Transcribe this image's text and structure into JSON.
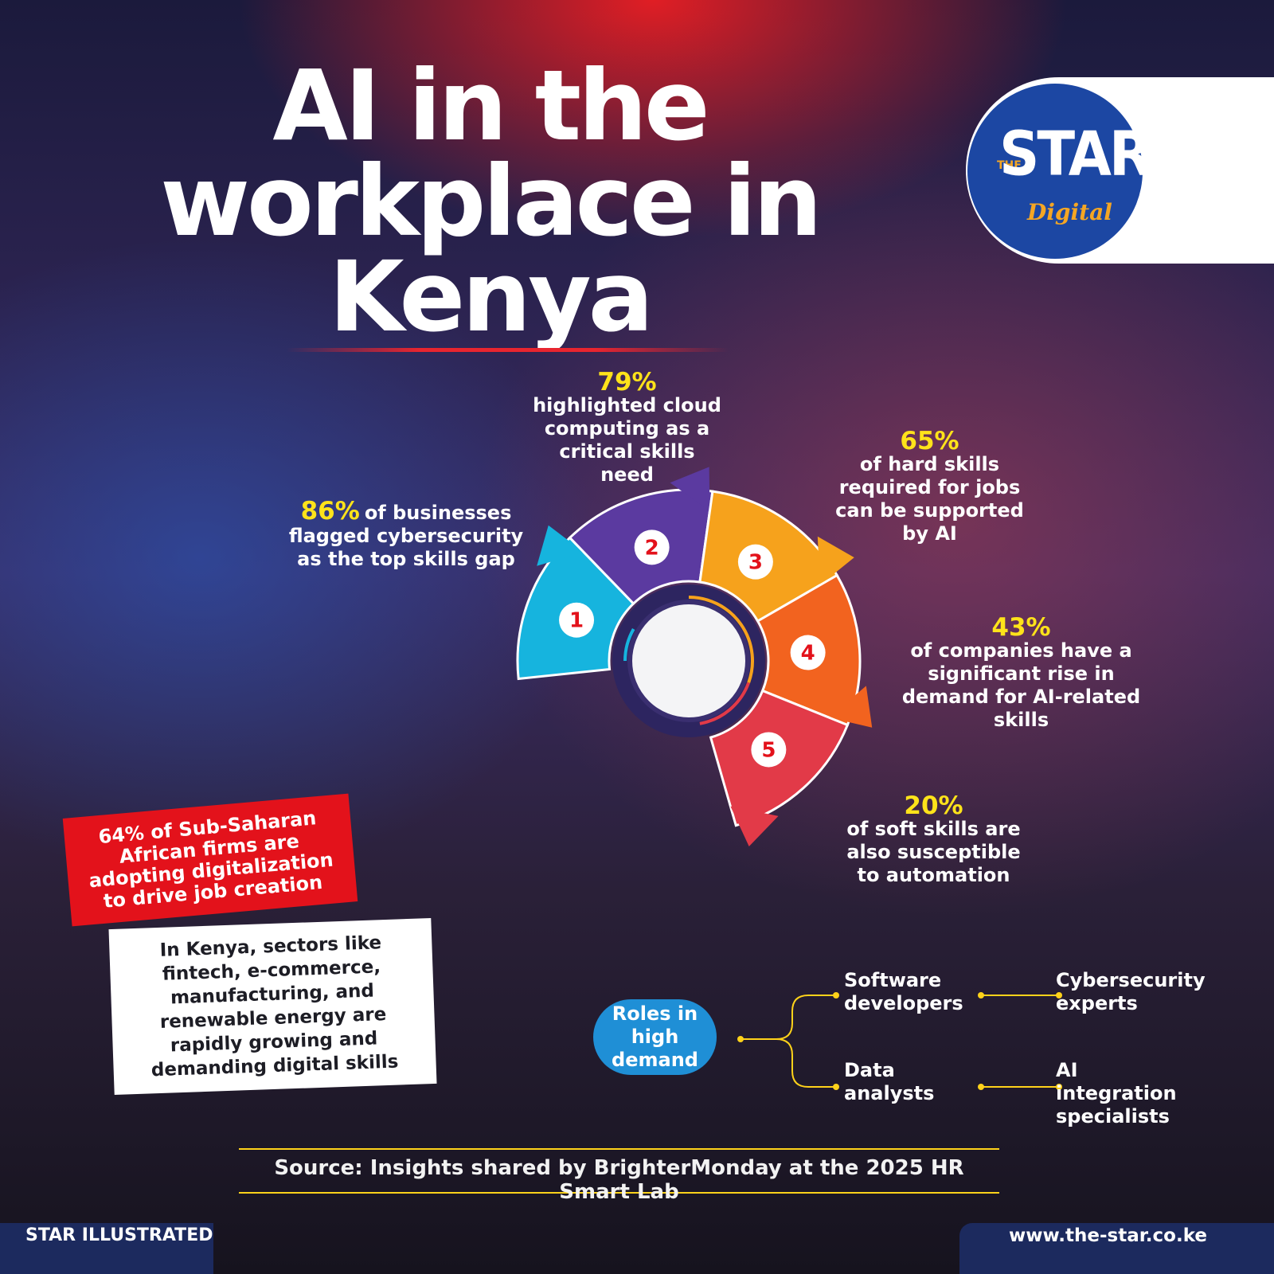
{
  "header": {
    "title_lines": [
      "AI in the",
      "workplace in",
      "Kenya"
    ]
  },
  "logo": {
    "the": "THE",
    "star": "STAR",
    "digital": "Digital"
  },
  "stats": [
    {
      "number": "1",
      "percent": "86%",
      "text": "of businesses flagged cybersecurity as the top skills gap"
    },
    {
      "number": "2",
      "percent": "79%",
      "text": "highlighted cloud computing as a critical skills need"
    },
    {
      "number": "3",
      "percent": "65%",
      "text": "of hard skills required for jobs can be supported by AI"
    },
    {
      "number": "4",
      "percent": "43%",
      "text": "of companies have a significant rise in demand for AI-related skills"
    },
    {
      "number": "5",
      "percent": "20%",
      "text": "of soft skills are also susceptible to automation"
    }
  ],
  "callouts": {
    "red": "64% of Sub-Saharan African firms are adopting digitalization to drive job creation",
    "white": "In Kenya, sectors like fintech, e-commerce, manufacturing, and renewable energy are rapidly growing and demanding digital skills"
  },
  "roles": {
    "label": "Roles in high demand",
    "items": [
      "Software developers",
      "Cybersecurity experts",
      "Data analysts",
      "AI integration specialists"
    ]
  },
  "source": "Source: Insights shared by BrighterMonday at the 2025 HR Smart Lab",
  "footer": {
    "left": "STAR ILLUSTRATED",
    "right": "www.the-star.co.ke"
  }
}
